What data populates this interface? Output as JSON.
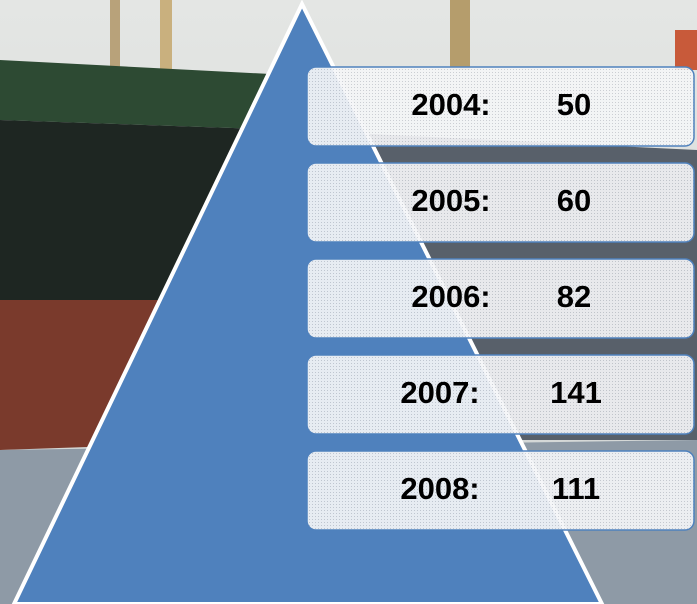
{
  "items": [
    {
      "year": "2004:",
      "value": "50"
    },
    {
      "year": "2005:",
      "value": "60"
    },
    {
      "year": "2006:",
      "value": "82"
    },
    {
      "year": "2007:",
      "value": "141"
    },
    {
      "year": "2008:",
      "value": "111"
    }
  ]
}
